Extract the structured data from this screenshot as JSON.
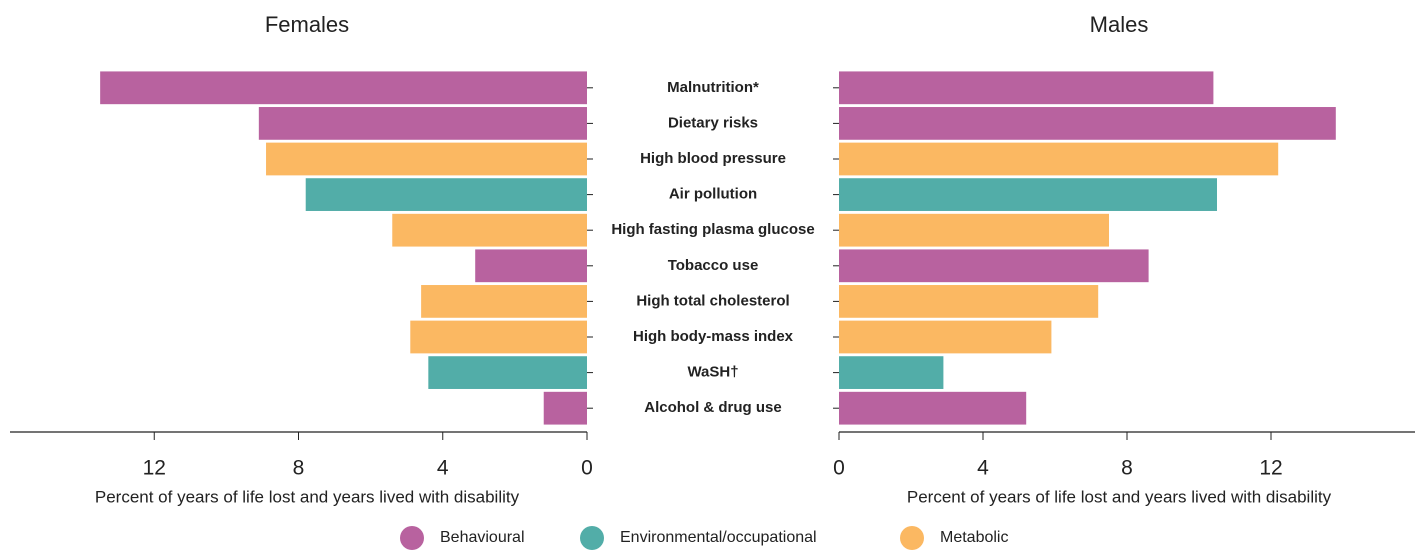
{
  "chart_data": {
    "type": "butterfly",
    "categories": [
      "Malnutrition*",
      "Dietary risks",
      "High blood pressure",
      "Air pollution",
      "High fasting plasma glucose",
      "Tobacco use",
      "High total cholesterol",
      "High body-mass index",
      "WaSH†",
      "Alcohol & drug use"
    ],
    "colors": [
      "#b8629f",
      "#b8629f",
      "#fbb862",
      "#52ada8",
      "#fbb862",
      "#b8629f",
      "#fbb862",
      "#fbb862",
      "#52ada8",
      "#b8629f"
    ],
    "legend": [
      {
        "name": "Behavioural",
        "color": "#b8629f"
      },
      {
        "name": "Environmental/occupational",
        "color": "#52ada8"
      },
      {
        "name": "Metabolic",
        "color": "#fbb862"
      }
    ],
    "panels": [
      {
        "title": "Females",
        "direction": "left",
        "values": [
          13.5,
          9.1,
          8.9,
          7.8,
          5.4,
          3.1,
          4.6,
          4.9,
          4.4,
          1.2
        ],
        "xlim": [
          0,
          16
        ],
        "xticks": [
          0,
          4,
          8,
          12
        ],
        "x_label": "Percent of years of life lost and years lived with disability"
      },
      {
        "title": "Males",
        "direction": "right",
        "values": [
          10.4,
          13.8,
          12.2,
          10.5,
          7.5,
          8.6,
          7.2,
          5.9,
          2.9,
          5.2
        ],
        "xlim": [
          0,
          16
        ],
        "xticks": [
          0,
          4,
          8,
          12
        ],
        "x_label": "Percent of years of life lost and years lived with disability"
      }
    ]
  }
}
